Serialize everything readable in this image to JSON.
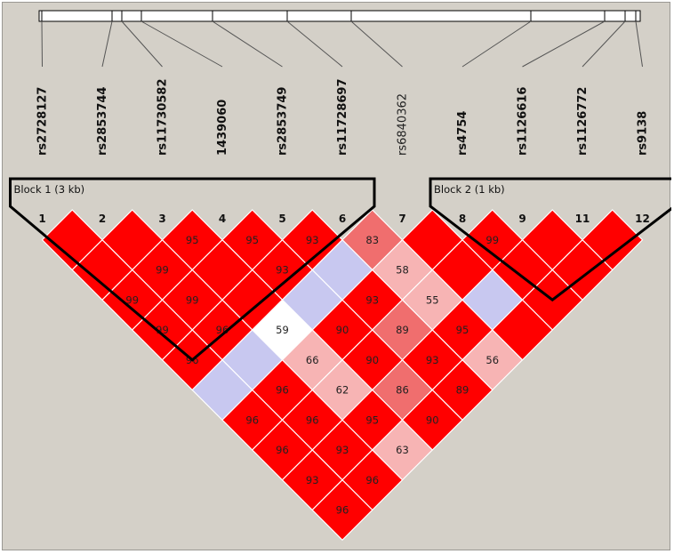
{
  "snps": [
    {
      "num": "1",
      "name": "rs2728127",
      "bold": true
    },
    {
      "num": "2",
      "name": "rs2853744",
      "bold": true
    },
    {
      "num": "3",
      "name": "rs11730582",
      "bold": true
    },
    {
      "num": "4",
      "name": "1439060",
      "bold": true
    },
    {
      "num": "5",
      "name": "rs2853749",
      "bold": true
    },
    {
      "num": "6",
      "name": "rs11728697",
      "bold": true
    },
    {
      "num": "7",
      "name": "rs6840362",
      "bold": false
    },
    {
      "num": "8",
      "name": "rs4754",
      "bold": true
    },
    {
      "num": "9",
      "name": "rs1126616",
      "bold": true
    },
    {
      "num": "11",
      "name": "rs1126772",
      "bold": true
    },
    {
      "num": "12",
      "name": "rs9138",
      "bold": true
    }
  ],
  "blocks": [
    {
      "label": "Block 1 (3 kb)",
      "from": 0,
      "to": 5
    },
    {
      "label": "Block 2 (1 kb)",
      "from": 7,
      "to": 10
    }
  ],
  "colors": {
    "background": "#d4d0c8",
    "strong": "#ff0000",
    "medium": "#f06e6e",
    "light": "#f7b4b4",
    "weak": "#c8c8f0",
    "white": "#ffffff",
    "cell_border": "#ffffff",
    "outline": "#000000"
  },
  "ld_cells": [
    {
      "i": 1,
      "j": 2,
      "value": "",
      "color": "strong"
    },
    {
      "i": 2,
      "j": 3,
      "value": "",
      "color": "strong"
    },
    {
      "i": 3,
      "j": 4,
      "value": "95",
      "color": "strong"
    },
    {
      "i": 4,
      "j": 5,
      "value": "95",
      "color": "strong"
    },
    {
      "i": 5,
      "j": 6,
      "value": "93",
      "color": "strong"
    },
    {
      "i": 6,
      "j": 7,
      "value": "83",
      "color": "medium"
    },
    {
      "i": 7,
      "j": 8,
      "value": "",
      "color": "strong"
    },
    {
      "i": 8,
      "j": 9,
      "value": "99",
      "color": "strong"
    },
    {
      "i": 9,
      "j": 10,
      "value": "",
      "color": "strong"
    },
    {
      "i": 10,
      "j": 11,
      "value": "",
      "color": "strong"
    },
    {
      "i": 1,
      "j": 3,
      "value": "",
      "color": "strong"
    },
    {
      "i": 2,
      "j": 4,
      "value": "99",
      "color": "strong"
    },
    {
      "i": 3,
      "j": 5,
      "value": "",
      "color": "strong"
    },
    {
      "i": 4,
      "j": 6,
      "value": "93",
      "color": "strong"
    },
    {
      "i": 5,
      "j": 7,
      "value": "",
      "color": "weak"
    },
    {
      "i": 6,
      "j": 8,
      "value": "58",
      "color": "light"
    },
    {
      "i": 7,
      "j": 9,
      "value": "",
      "color": "strong"
    },
    {
      "i": 8,
      "j": 10,
      "value": "",
      "color": "strong"
    },
    {
      "i": 9,
      "j": 11,
      "value": "",
      "color": "strong"
    },
    {
      "i": 1,
      "j": 4,
      "value": "99",
      "color": "strong"
    },
    {
      "i": 2,
      "j": 5,
      "value": "99",
      "color": "strong"
    },
    {
      "i": 3,
      "j": 6,
      "value": "",
      "color": "strong"
    },
    {
      "i": 4,
      "j": 7,
      "value": "",
      "color": "weak"
    },
    {
      "i": 5,
      "j": 8,
      "value": "93",
      "color": "strong"
    },
    {
      "i": 6,
      "j": 9,
      "value": "55",
      "color": "light"
    },
    {
      "i": 7,
      "j": 10,
      "value": "",
      "color": "weak"
    },
    {
      "i": 8,
      "j": 11,
      "value": "",
      "color": "strong"
    },
    {
      "i": 1,
      "j": 5,
      "value": "99",
      "color": "strong"
    },
    {
      "i": 2,
      "j": 6,
      "value": "96",
      "color": "strong"
    },
    {
      "i": 3,
      "j": 7,
      "value": "59",
      "color": "white"
    },
    {
      "i": 4,
      "j": 8,
      "value": "90",
      "color": "strong"
    },
    {
      "i": 5,
      "j": 9,
      "value": "89",
      "color": "medium"
    },
    {
      "i": 6,
      "j": 10,
      "value": "95",
      "color": "strong"
    },
    {
      "i": 7,
      "j": 11,
      "value": "",
      "color": "strong"
    },
    {
      "i": 1,
      "j": 6,
      "value": "96",
      "color": "strong"
    },
    {
      "i": 2,
      "j": 7,
      "value": "",
      "color": "weak"
    },
    {
      "i": 3,
      "j": 8,
      "value": "66",
      "color": "light"
    },
    {
      "i": 4,
      "j": 9,
      "value": "90",
      "color": "strong"
    },
    {
      "i": 5,
      "j": 10,
      "value": "93",
      "color": "strong"
    },
    {
      "i": 6,
      "j": 11,
      "value": "56",
      "color": "light"
    },
    {
      "i": 1,
      "j": 7,
      "value": "",
      "color": "weak"
    },
    {
      "i": 2,
      "j": 8,
      "value": "96",
      "color": "strong"
    },
    {
      "i": 3,
      "j": 9,
      "value": "62",
      "color": "light"
    },
    {
      "i": 4,
      "j": 10,
      "value": "86",
      "color": "medium"
    },
    {
      "i": 5,
      "j": 11,
      "value": "89",
      "color": "strong"
    },
    {
      "i": 1,
      "j": 8,
      "value": "96",
      "color": "strong"
    },
    {
      "i": 2,
      "j": 9,
      "value": "96",
      "color": "strong"
    },
    {
      "i": 3,
      "j": 10,
      "value": "95",
      "color": "strong"
    },
    {
      "i": 4,
      "j": 11,
      "value": "90",
      "color": "strong"
    },
    {
      "i": 1,
      "j": 9,
      "value": "96",
      "color": "strong"
    },
    {
      "i": 2,
      "j": 10,
      "value": "93",
      "color": "strong"
    },
    {
      "i": 3,
      "j": 11,
      "value": "63",
      "color": "light"
    },
    {
      "i": 1,
      "j": 10,
      "value": "93",
      "color": "strong"
    },
    {
      "i": 2,
      "j": 11,
      "value": "96",
      "color": "strong"
    },
    {
      "i": 1,
      "j": 11,
      "value": "96",
      "color": "strong"
    }
  ]
}
